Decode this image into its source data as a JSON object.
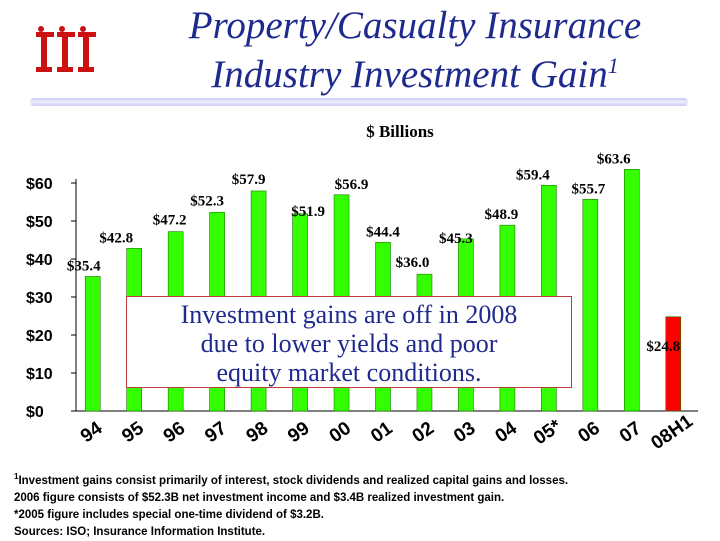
{
  "title": {
    "line1": "Property/Casualty Insurance",
    "line2": "Industry Investment Gain",
    "footnote_mark": "1"
  },
  "chart_data": {
    "type": "bar",
    "title": "Property/Casualty Insurance Industry Investment Gain",
    "unit_label": "$ Billions",
    "categories": [
      "94",
      "95",
      "96",
      "97",
      "98",
      "99",
      "00",
      "01",
      "02",
      "03",
      "04",
      "05*",
      "06",
      "07",
      "08H1"
    ],
    "values": [
      35.4,
      42.8,
      47.2,
      52.3,
      57.9,
      51.9,
      56.9,
      44.4,
      36.0,
      45.3,
      48.9,
      59.4,
      55.7,
      63.6,
      24.8
    ],
    "value_labels": [
      "$35.4",
      "$42.8",
      "$47.2",
      "$52.3",
      "$57.9",
      "$51.9",
      "$56.9",
      "$44.4",
      "$36.0",
      "$45.3",
      "$48.9",
      "$59.4",
      "$55.7",
      "$63.6",
      "$24.8"
    ],
    "bar_colors": [
      "#33ff00",
      "#33ff00",
      "#33ff00",
      "#33ff00",
      "#33ff00",
      "#33ff00",
      "#33ff00",
      "#33ff00",
      "#33ff00",
      "#33ff00",
      "#33ff00",
      "#33ff00",
      "#33ff00",
      "#33ff00",
      "#ff0000"
    ],
    "ylim": [
      0,
      60
    ],
    "y_ticks": [
      0,
      10,
      20,
      30,
      40,
      50,
      60
    ],
    "y_tick_labels": [
      "$0",
      "$10",
      "$20",
      "$30",
      "$40",
      "$50",
      "$60"
    ],
    "xlabel": "",
    "ylabel": "",
    "grid": false
  },
  "callout": {
    "text": "Investment gains are off in 2008\ndue to lower yields and poor\nequity market conditions."
  },
  "footnotes": {
    "line1_mark": "1",
    "line1": "Investment gains consist primarily of interest, stock dividends and realized capital gains and losses.",
    "line2": "2006 figure consists of $52.3B net investment income and $3.4B realized investment gain.",
    "line3": " *2005 figure includes special one-time dividend of $3.2B.",
    "line4": "Sources: ISO; Insurance Information Institute."
  },
  "colors": {
    "title": "#1f2a8f",
    "bar_green": "#33ff00",
    "bar_red": "#ff0000",
    "logo_red": "#cc1111",
    "callout_border": "#c23b3b"
  },
  "logo": {
    "icon": "iii-logo-icon"
  }
}
